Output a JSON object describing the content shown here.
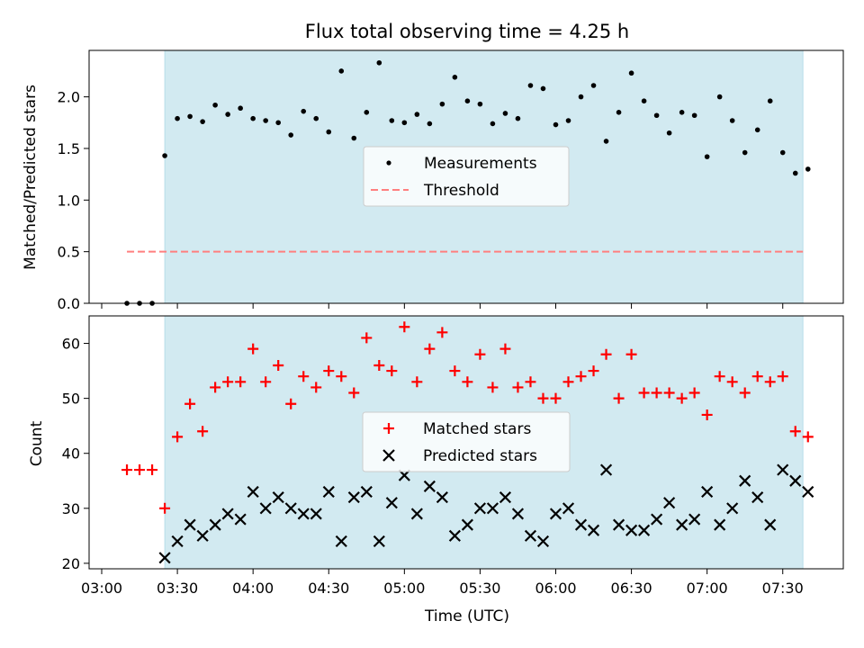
{
  "chart_data": [
    {
      "type": "scatter",
      "title": "Flux total observing time = 4.25 h",
      "ylabel": "Matched/Predicted stars",
      "ylim": [
        0,
        2.45
      ],
      "yticks": [
        0.0,
        0.5,
        1.0,
        1.5,
        2.0
      ],
      "ytick_labels": [
        "0.0",
        "0.5",
        "1.0",
        "1.5",
        "2.0"
      ],
      "shaded_span": [
        "03:25",
        "07:38"
      ],
      "shade_color": "#add8e6",
      "legend": "center",
      "series": [
        {
          "name": "Measurements",
          "marker": "dot",
          "color": "#000000",
          "x": [
            "03:10",
            "03:15",
            "03:20",
            "03:25",
            "03:30",
            "03:35",
            "03:40",
            "03:45",
            "03:50",
            "03:55",
            "04:00",
            "04:05",
            "04:10",
            "04:15",
            "04:20",
            "04:25",
            "04:30",
            "04:35",
            "04:40",
            "04:45",
            "04:50",
            "04:55",
            "05:00",
            "05:05",
            "05:10",
            "05:15",
            "05:20",
            "05:25",
            "05:30",
            "05:35",
            "05:40",
            "05:45",
            "05:50",
            "05:55",
            "06:00",
            "06:05",
            "06:10",
            "06:15",
            "06:20",
            "06:25",
            "06:30",
            "06:35",
            "06:40",
            "06:45",
            "06:50",
            "06:55",
            "07:00",
            "07:05",
            "07:10",
            "07:15",
            "07:20",
            "07:25",
            "07:30",
            "07:35",
            "07:40"
          ],
          "y": [
            0.0,
            0.0,
            0.0,
            1.43,
            1.79,
            1.81,
            1.76,
            1.92,
            1.83,
            1.89,
            1.79,
            1.77,
            1.75,
            1.63,
            1.86,
            1.79,
            1.66,
            2.25,
            1.6,
            1.85,
            2.33,
            1.77,
            1.75,
            1.83,
            1.74,
            1.93,
            2.19,
            1.96,
            1.93,
            1.74,
            1.84,
            1.79,
            2.11,
            2.08,
            1.73,
            1.77,
            2.0,
            2.11,
            1.57,
            1.85,
            2.23,
            1.96,
            1.82,
            1.65,
            1.85,
            1.82,
            1.42,
            2.0,
            1.77,
            1.46,
            1.68,
            1.96,
            1.46,
            1.26,
            1.3
          ]
        },
        {
          "name": "Threshold",
          "style": "dashed",
          "color": "#ff7f7f",
          "x": [
            "03:10",
            "07:38"
          ],
          "y": [
            0.5,
            0.5
          ]
        }
      ]
    },
    {
      "type": "scatter",
      "xlabel": "Time (UTC)",
      "ylabel": "Count",
      "ylim": [
        19,
        65
      ],
      "yticks": [
        20,
        30,
        40,
        50,
        60
      ],
      "ytick_labels": [
        "20",
        "30",
        "40",
        "50",
        "60"
      ],
      "x_tick_labels": [
        "03:00",
        "03:30",
        "04:00",
        "04:30",
        "05:00",
        "05:30",
        "06:00",
        "06:30",
        "07:00",
        "07:30"
      ],
      "xlim": [
        "02:55",
        "07:54"
      ],
      "shaded_span": [
        "03:25",
        "07:38"
      ],
      "legend": "center",
      "series": [
        {
          "name": "Matched stars",
          "marker": "plus",
          "color": "#ff0000",
          "x": [
            "03:10",
            "03:15",
            "03:20",
            "03:25",
            "03:30",
            "03:35",
            "03:40",
            "03:45",
            "03:50",
            "03:55",
            "04:00",
            "04:05",
            "04:10",
            "04:15",
            "04:20",
            "04:25",
            "04:30",
            "04:35",
            "04:40",
            "04:45",
            "04:50",
            "04:55",
            "05:00",
            "05:05",
            "05:10",
            "05:15",
            "05:20",
            "05:25",
            "05:30",
            "05:35",
            "05:40",
            "05:45",
            "05:50",
            "05:55",
            "06:00",
            "06:05",
            "06:10",
            "06:15",
            "06:20",
            "06:25",
            "06:30",
            "06:35",
            "06:40",
            "06:45",
            "06:50",
            "06:55",
            "07:00",
            "07:05",
            "07:10",
            "07:15",
            "07:20",
            "07:25",
            "07:30",
            "07:35",
            "07:40"
          ],
          "y": [
            37,
            37,
            37,
            30,
            43,
            49,
            44,
            52,
            53,
            53,
            59,
            53,
            56,
            49,
            54,
            52,
            55,
            54,
            51,
            61,
            56,
            55,
            63,
            53,
            59,
            62,
            55,
            53,
            58,
            52,
            59,
            52,
            53,
            50,
            50,
            53,
            54,
            55,
            58,
            50,
            58,
            51,
            51,
            51,
            50,
            51,
            47,
            54,
            53,
            51,
            54,
            53,
            54,
            44,
            43
          ]
        },
        {
          "name": "Predicted stars",
          "marker": "x",
          "color": "#000000",
          "x": [
            "03:25",
            "03:30",
            "03:35",
            "03:40",
            "03:45",
            "03:50",
            "03:55",
            "04:00",
            "04:05",
            "04:10",
            "04:15",
            "04:20",
            "04:25",
            "04:30",
            "04:35",
            "04:40",
            "04:45",
            "04:50",
            "04:55",
            "05:00",
            "05:05",
            "05:10",
            "05:15",
            "05:20",
            "05:25",
            "05:30",
            "05:35",
            "05:40",
            "05:45",
            "05:50",
            "05:55",
            "06:00",
            "06:05",
            "06:10",
            "06:15",
            "06:20",
            "06:25",
            "06:30",
            "06:35",
            "06:40",
            "06:45",
            "06:50",
            "06:55",
            "07:00",
            "07:05",
            "07:10",
            "07:15",
            "07:20",
            "07:25",
            "07:30",
            "07:35",
            "07:40"
          ],
          "y": [
            21,
            24,
            27,
            25,
            27,
            29,
            28,
            33,
            30,
            32,
            30,
            29,
            29,
            33,
            24,
            32,
            33,
            24,
            31,
            36,
            29,
            34,
            32,
            25,
            27,
            30,
            30,
            32,
            29,
            25,
            24,
            29,
            30,
            27,
            26,
            37,
            27,
            26,
            26,
            28,
            31,
            27,
            28,
            33,
            27,
            30,
            35,
            32,
            27,
            37,
            35,
            33
          ]
        }
      ]
    }
  ]
}
